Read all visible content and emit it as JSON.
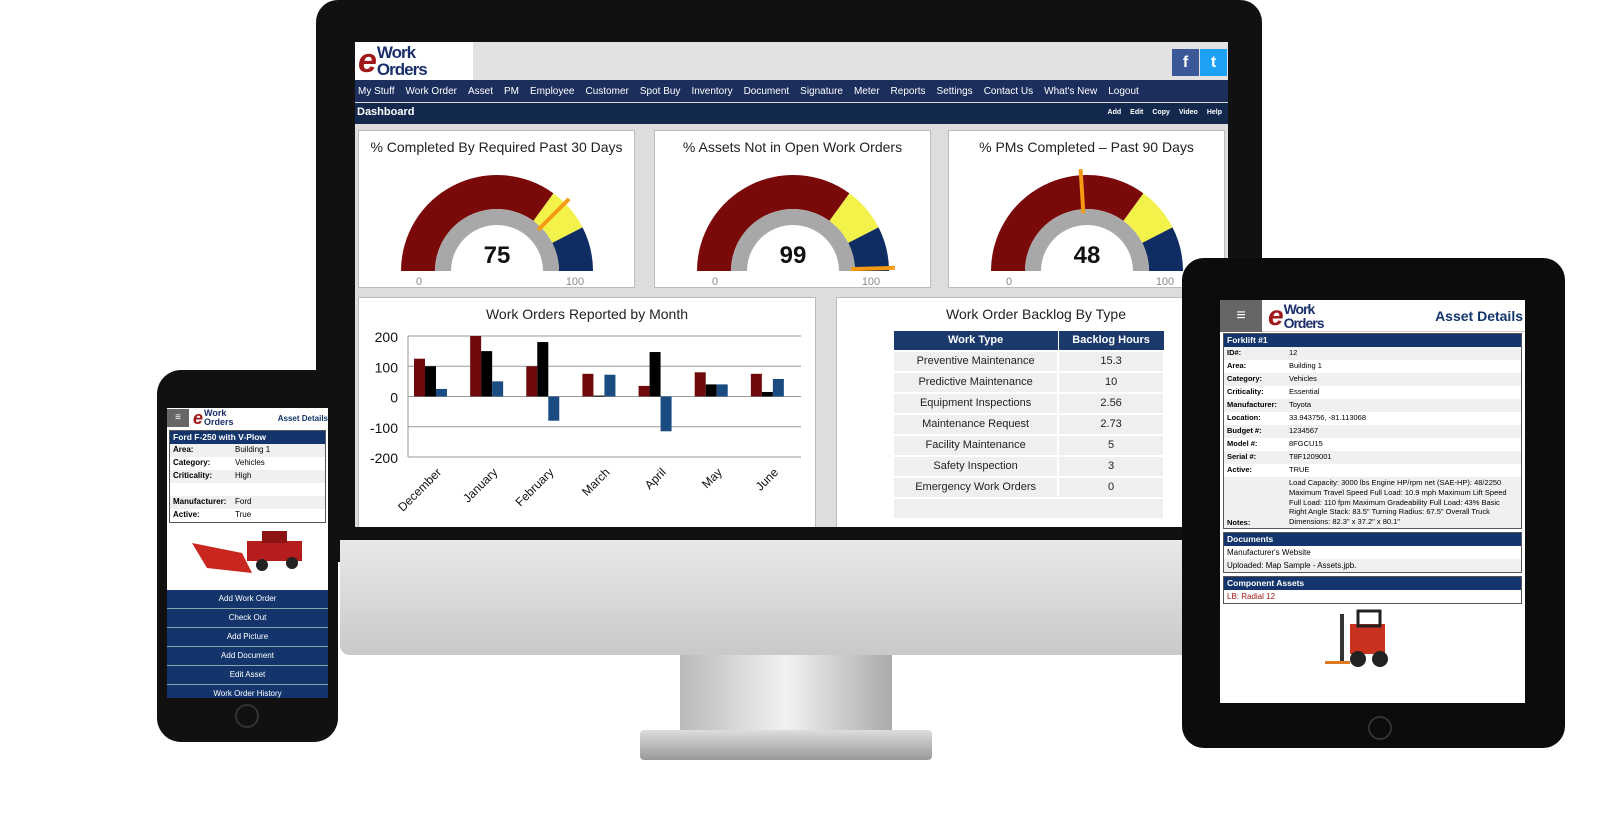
{
  "desktop": {
    "logo": {
      "e": "e",
      "line1": "Work",
      "line2": "Orders"
    },
    "social": [
      "f",
      "t"
    ],
    "nav": [
      "My Stuff",
      "Work Order",
      "Asset",
      "PM",
      "Employee",
      "Customer",
      "Spot Buy",
      "Inventory",
      "Document",
      "Signature",
      "Meter",
      "Reports",
      "Settings",
      "Contact Us",
      "What's New",
      "Logout"
    ],
    "page_title": "Dashboard",
    "actions": [
      "Add",
      "Edit",
      "Copy",
      "Video",
      "Help"
    ],
    "gauges": [
      {
        "title": "% Completed By Required Past 30 Days",
        "value": 75,
        "min": "0",
        "max": "100"
      },
      {
        "title": "% Assets Not in Open Work Orders",
        "value": 99,
        "min": "0",
        "max": "100"
      },
      {
        "title": "% PMs Completed – Past 90 Days",
        "value": 48,
        "min": "0",
        "max": "100"
      }
    ],
    "gauge_colors": {
      "low": "#7a0a0a",
      "mid": "#f2f24a",
      "high": "#0f2d62",
      "needle": "#f59a12",
      "ring": "#a8a8a8"
    },
    "backlog": {
      "title": "Work Order Backlog By Type",
      "headers": [
        "Work Type",
        "Backlog Hours"
      ],
      "rows": [
        [
          "Preventive Maintenance",
          "15.3"
        ],
        [
          "Predictive Maintenance",
          "10"
        ],
        [
          "Equipment Inspections",
          "2.56"
        ],
        [
          "Maintenance Request",
          "2.73"
        ],
        [
          "Facility Maintenance",
          "5"
        ],
        [
          "Safety Inspection",
          "3"
        ],
        [
          "Emergency Work Orders",
          "0"
        ]
      ]
    }
  },
  "chart_data": {
    "type": "bar",
    "title": "Work Orders Reported by Month",
    "categories": [
      "December",
      "January",
      "February",
      "March",
      "April",
      "May",
      "June"
    ],
    "series": [
      {
        "color": "#6e0a0a",
        "values": [
          125,
          200,
          100,
          75,
          35,
          80,
          75
        ]
      },
      {
        "color": "#000000",
        "values": [
          100,
          150,
          180,
          3,
          147,
          40,
          15
        ]
      },
      {
        "color": "#1a4c82",
        "values": [
          25,
          50,
          -80,
          72,
          -115,
          40,
          58
        ]
      }
    ],
    "yticks": [
      "200",
      "100",
      "0",
      "-100",
      "-200"
    ],
    "ylim": [
      -200,
      200
    ],
    "grid": true
  },
  "phone": {
    "title": "Asset Details",
    "asset": "Ford F-250 with V-Plow",
    "rows": [
      [
        "Area:",
        "Building 1"
      ],
      [
        "Category:",
        "Vehicles"
      ],
      [
        "Criticality:",
        "High"
      ],
      [
        "",
        ""
      ],
      [
        "Manufacturer:",
        "Ford"
      ],
      [
        "Active:",
        "True"
      ]
    ],
    "buttons": [
      "Add Work Order",
      "Check Out",
      "Add Picture",
      "Add Document",
      "Edit Asset",
      "Work Order History"
    ]
  },
  "tablet": {
    "title": "Asset Details",
    "asset": "Forklift #1",
    "rows": [
      [
        "ID#:",
        "12"
      ],
      [
        "Area:",
        "Building 1"
      ],
      [
        "Category:",
        "Vehicles"
      ],
      [
        "Criticality:",
        "Essential"
      ],
      [
        "Manufacturer:",
        "Toyota"
      ],
      [
        "Location:",
        "33.943756, -81.113068"
      ],
      [
        "Budget #:",
        "1234567"
      ],
      [
        "Model #:",
        "8FGCU15"
      ],
      [
        "Serial #:",
        "T8F1209001"
      ],
      [
        "Active:",
        "TRUE"
      ],
      [
        "Notes:",
        "Load Capacity: 3000 lbs Engine HP/rpm net (SAE-HP): 48/2250 Maximum Travel Speed Full Load: 10.9 mph Maximum Lift Speed Full Load: 110 fpm Maximum Gradeability Full Load: 43% Basic Right Angle Stack: 83.5\" Turning Radius: 67.5\" Overall Truck Dimensions: 82.3\" x 37.2\" x 80.1\""
      ]
    ],
    "documents_title": "Documents",
    "documents": [
      "Manufacturer's Website",
      "Uploaded:  Map Sample - Assets.jpb."
    ],
    "components_title": "Component Assets",
    "components": [
      "LB: Radial 12"
    ]
  }
}
